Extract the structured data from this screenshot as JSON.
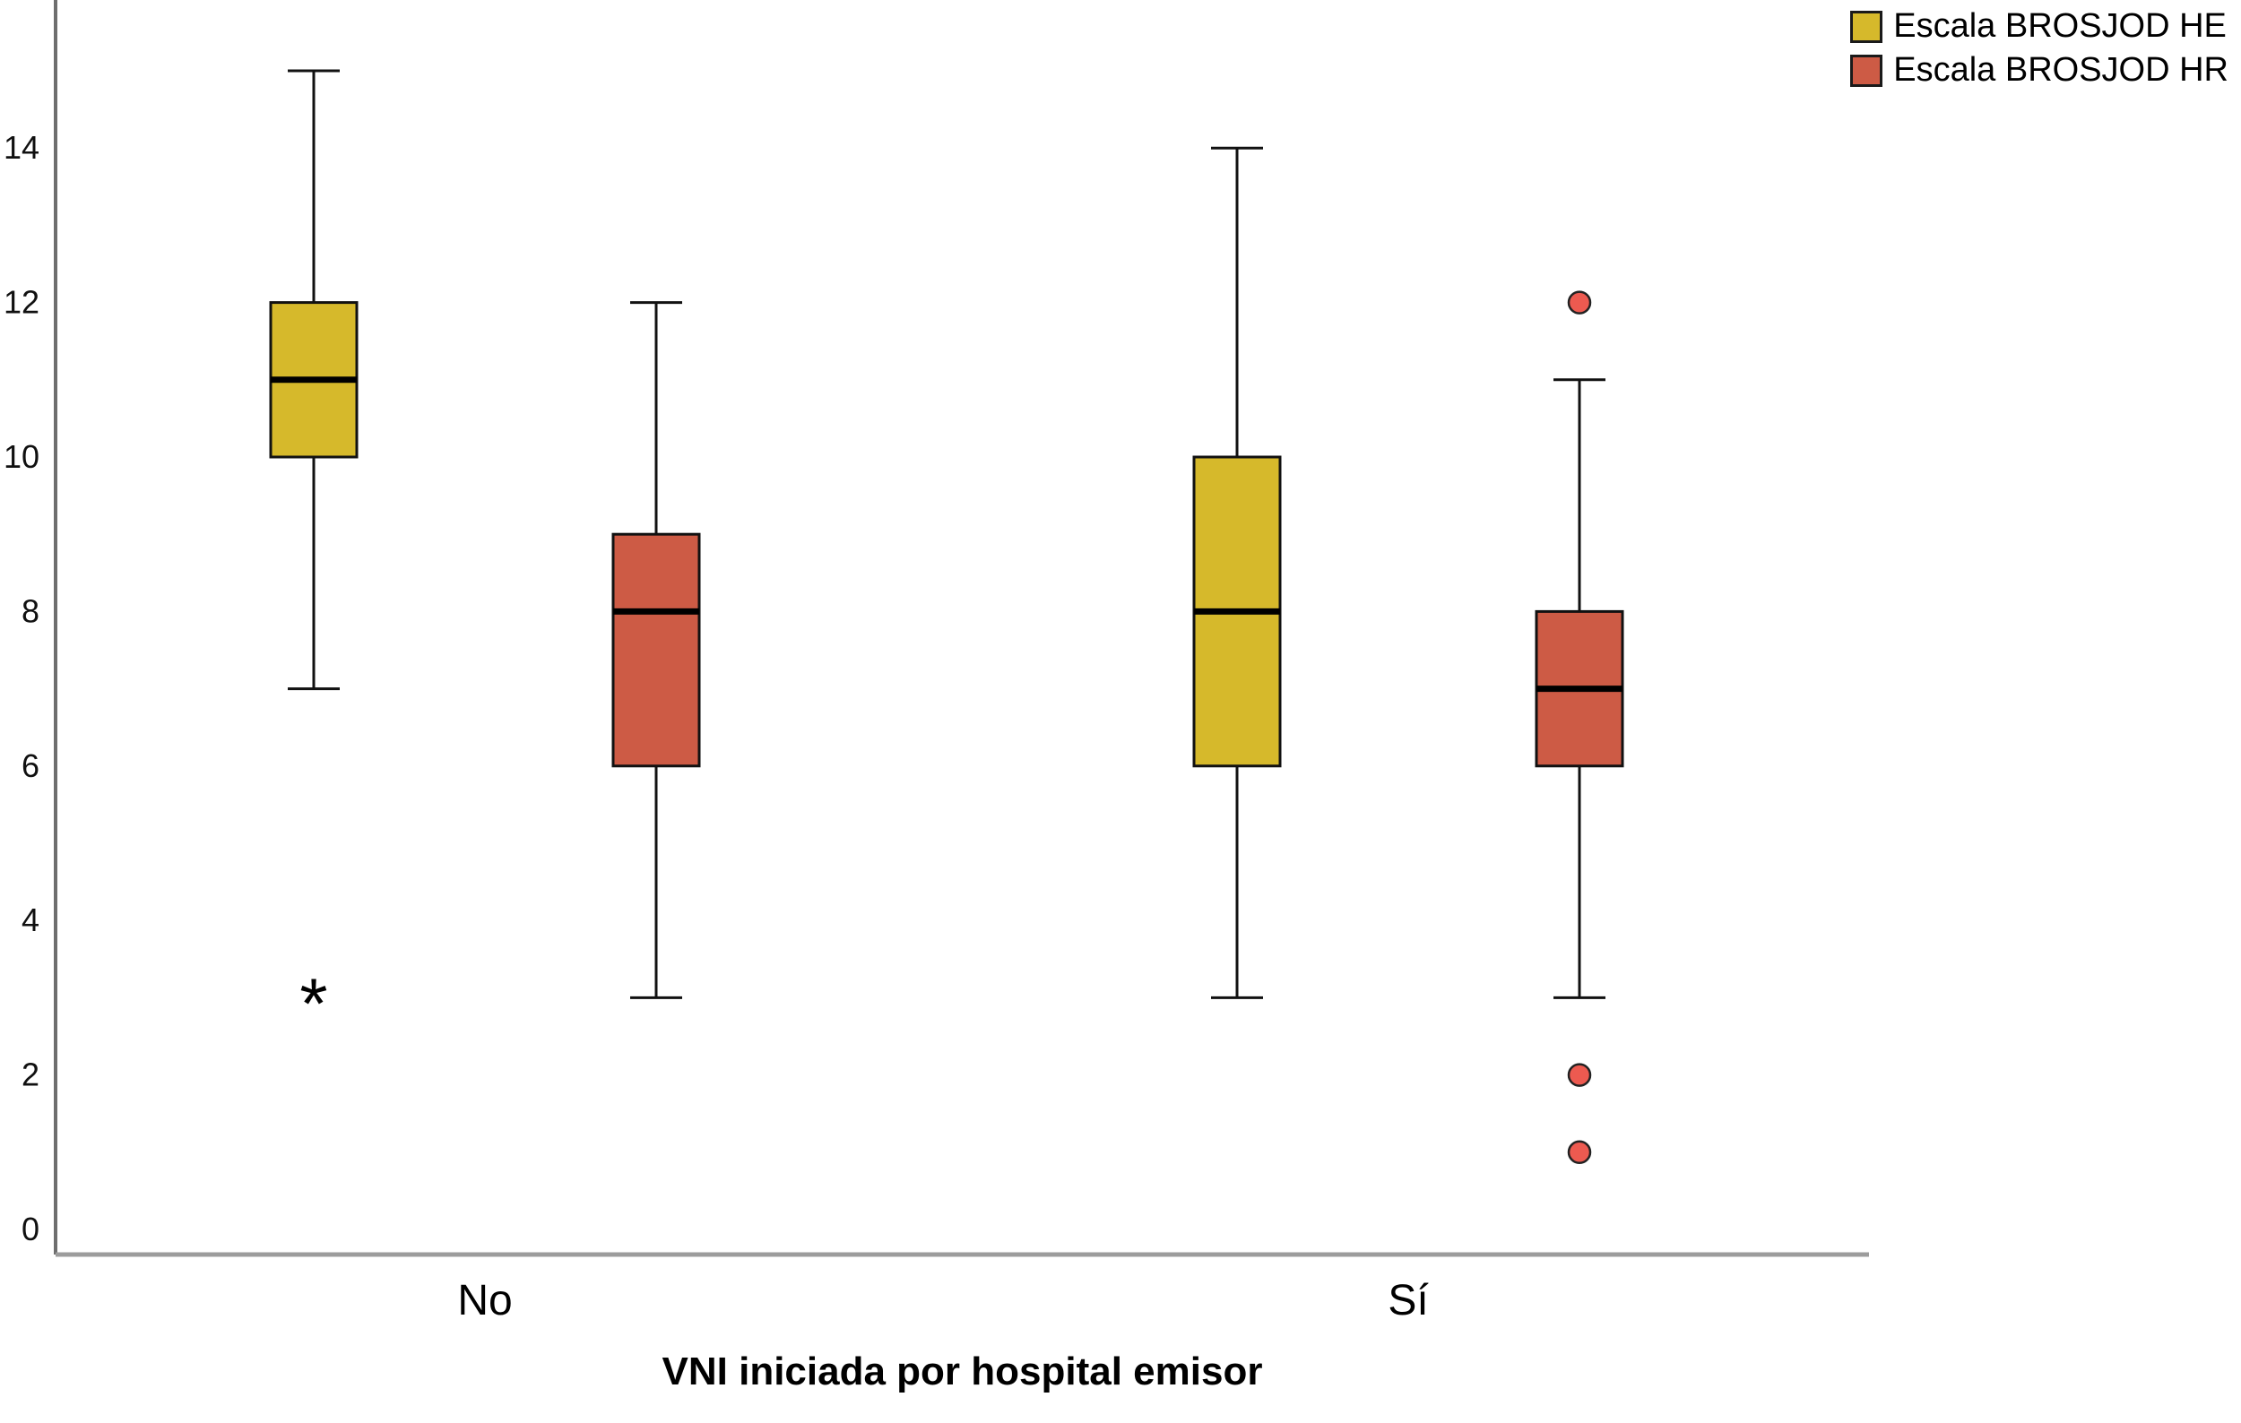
{
  "chart_data": {
    "type": "boxplot",
    "title": "",
    "xlabel": "VNI iniciada por hospital emisor",
    "ylabel": "",
    "ylim": [
      0,
      15.5
    ],
    "yticks": [
      0,
      2,
      4,
      6,
      8,
      10,
      12,
      14
    ],
    "grid": false,
    "categories": [
      "No",
      "Sí"
    ],
    "legend_position": "top-right",
    "series": [
      {
        "name": "Escala BROSJOD HE",
        "color": "#d6b92b",
        "boxes": [
          {
            "category": "No",
            "whisker_low": 7,
            "q1": 10,
            "median": 11,
            "q3": 12,
            "whisker_high": 15,
            "outliers_mild": [],
            "outliers_extreme": [
              3
            ]
          },
          {
            "category": "Sí",
            "whisker_low": 3,
            "q1": 6,
            "median": 8,
            "q3": 10,
            "whisker_high": 14,
            "outliers_mild": [],
            "outliers_extreme": []
          }
        ]
      },
      {
        "name": "Escala BROSJOD HR",
        "color": "#cd5b45",
        "outlier_color": "#ed5a50",
        "boxes": [
          {
            "category": "No",
            "whisker_low": 3,
            "q1": 6,
            "median": 8,
            "q3": 9,
            "whisker_high": 12,
            "outliers_mild": [],
            "outliers_extreme": []
          },
          {
            "category": "Sí",
            "whisker_low": 3,
            "q1": 6,
            "median": 7,
            "q3": 8,
            "whisker_high": 11,
            "outliers_mild": [
              12,
              2,
              1
            ],
            "outliers_extreme": []
          }
        ]
      }
    ]
  }
}
